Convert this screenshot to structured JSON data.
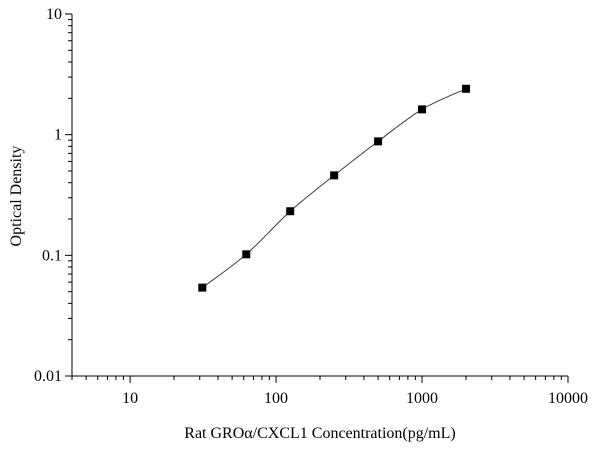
{
  "chart_data": {
    "type": "scatter",
    "title": "",
    "xlabel": "Rat GROα/CXCL1  Concentration(pg/mL)",
    "ylabel": "Optical Density",
    "x_scale": "log",
    "y_scale": "log",
    "xlim": [
      4,
      10000
    ],
    "ylim": [
      0.01,
      10
    ],
    "x_ticks": [
      {
        "value": 10,
        "label": "10"
      },
      {
        "value": 100,
        "label": "100"
      },
      {
        "value": 1000,
        "label": "1000"
      },
      {
        "value": 10000,
        "label": "10000"
      }
    ],
    "y_ticks": [
      {
        "value": 0.01,
        "label": "0.01"
      },
      {
        "value": 0.1,
        "label": "0.1"
      },
      {
        "value": 1,
        "label": "1"
      },
      {
        "value": 10,
        "label": "10"
      }
    ],
    "grid": false,
    "legend": "none",
    "series": [
      {
        "x": [
          31.25,
          62.5,
          125,
          250,
          500,
          1000,
          2000
        ],
        "y": [
          0.054,
          0.102,
          0.232,
          0.46,
          0.88,
          1.62,
          2.4
        ]
      }
    ],
    "colors": {
      "marker": "#000000",
      "line": "#3a3a3a",
      "axis": "#000000"
    }
  }
}
